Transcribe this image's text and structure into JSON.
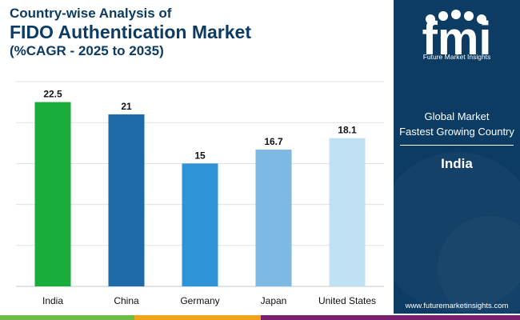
{
  "title": {
    "line1": "Country-wise Analysis of",
    "line2": "FIDO Authentication Market",
    "line3": "(%CAGR - 2025 to 2035)"
  },
  "chart_data": {
    "type": "bar",
    "categories": [
      "India",
      "China",
      "Germany",
      "Japan",
      "United States"
    ],
    "values": [
      22.5,
      21,
      15,
      16.7,
      18.1
    ],
    "value_labels": [
      "22.5",
      "21",
      "15",
      "16.7",
      "18.1"
    ],
    "colors": [
      "#1aad3b",
      "#1f6aa8",
      "#2f93d8",
      "#7db9e3",
      "#c0e0f3"
    ],
    "ylim": [
      0,
      25
    ],
    "grid": true,
    "legend": "none"
  },
  "side_panel": {
    "logo_text": "fmi",
    "brand": "Future Market Insights",
    "label_line1": "Global Market",
    "label_line2": "Fastest Growing Country",
    "country": "India",
    "website": "www.futuremarketinsights.com"
  },
  "colors": {
    "panel": "#0c3b63",
    "title": "#0c3b63",
    "grid": "#d9d9d9",
    "bar_india": "#1aad3b"
  }
}
